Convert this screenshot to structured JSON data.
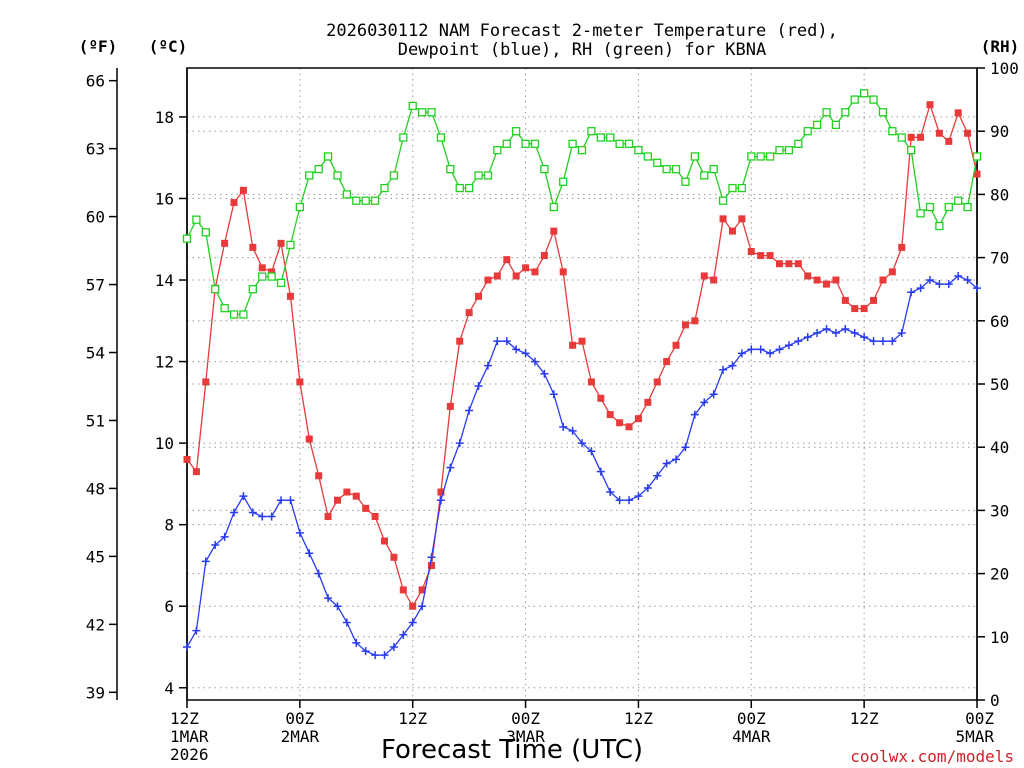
{
  "chart_data": {
    "type": "line",
    "title": [
      "2026030112 NAM Forecast 2-meter Temperature (red),",
      "Dewpoint (blue), RH (green) for KBNA"
    ],
    "xlabel": "Forecast Time (UTC)",
    "credit": "coolwx.com/models",
    "units": {
      "fahrenheit": "(ºF)",
      "celsius": "(ºC)",
      "rh": "(RH)"
    },
    "x_hours": [
      0,
      1,
      2,
      3,
      4,
      5,
      6,
      7,
      8,
      9,
      10,
      11,
      12,
      13,
      14,
      15,
      16,
      17,
      18,
      19,
      20,
      21,
      22,
      23,
      24,
      25,
      26,
      27,
      28,
      29,
      30,
      31,
      32,
      33,
      34,
      35,
      36,
      37,
      38,
      39,
      40,
      41,
      42,
      43,
      44,
      45,
      46,
      47,
      48,
      49,
      50,
      51,
      52,
      53,
      54,
      55,
      56,
      57,
      58,
      59,
      60,
      61,
      62,
      63,
      64,
      65,
      66,
      67,
      68,
      69,
      70,
      71,
      72,
      73,
      74,
      75,
      76,
      77,
      78,
      79,
      80,
      81,
      82,
      83,
      84
    ],
    "x_ticks": [
      {
        "hour": 0,
        "lines": [
          "12Z",
          "1MAR",
          "2026"
        ]
      },
      {
        "hour": 12,
        "lines": [
          "00Z",
          "2MAR"
        ]
      },
      {
        "hour": 24,
        "lines": [
          "12Z"
        ]
      },
      {
        "hour": 36,
        "lines": [
          "00Z",
          "3MAR"
        ]
      },
      {
        "hour": 48,
        "lines": [
          "12Z"
        ]
      },
      {
        "hour": 60,
        "lines": [
          "00Z",
          "4MAR"
        ]
      },
      {
        "hour": 72,
        "lines": [
          "12Z"
        ]
      },
      {
        "hour": 84,
        "lines": [
          "00Z",
          "5MAR"
        ]
      }
    ],
    "ylim_c": [
      3.7,
      19.2
    ],
    "yticks_c": [
      "4",
      "6",
      "8",
      "10",
      "12",
      "14",
      "16",
      "18"
    ],
    "yticks_f": [
      "39",
      "42",
      "45",
      "48",
      "51",
      "54",
      "57",
      "60",
      "63",
      "66"
    ],
    "ylim_rh": [
      0,
      100
    ],
    "yticks_rh": [
      "0",
      "10",
      "20",
      "30",
      "40",
      "50",
      "60",
      "70",
      "80",
      "90",
      "100"
    ],
    "grid": true,
    "series": [
      {
        "name": "Temperature",
        "axis": "c",
        "color": "#e83a3a",
        "marker": "filled-square",
        "values": [
          9.6,
          9.3,
          11.5,
          13.8,
          14.9,
          15.9,
          16.2,
          14.8,
          14.3,
          14.2,
          14.9,
          13.6,
          11.5,
          10.1,
          9.2,
          8.2,
          8.6,
          8.8,
          8.7,
          8.4,
          8.2,
          7.6,
          7.2,
          6.4,
          6.0,
          6.4,
          7.0,
          8.8,
          10.9,
          12.5,
          13.2,
          13.6,
          14.0,
          14.1,
          14.5,
          14.1,
          14.3,
          14.2,
          14.6,
          15.2,
          14.2,
          12.4,
          12.5,
          11.5,
          11.1,
          10.7,
          10.5,
          10.4,
          10.6,
          11.0,
          11.5,
          12.0,
          12.4,
          12.9,
          13.0,
          14.1,
          14.0,
          15.5,
          15.2,
          15.5,
          14.7,
          14.6,
          14.6,
          14.4,
          14.4,
          14.4,
          14.1,
          14.0,
          13.9,
          14.0,
          13.5,
          13.3,
          13.3,
          13.5,
          14.0,
          14.2,
          14.8,
          17.5,
          17.5,
          18.3,
          17.6,
          17.4,
          18.1,
          17.6,
          16.6
        ]
      },
      {
        "name": "Dewpoint",
        "axis": "c",
        "color": "#2a3cf0",
        "marker": "plus",
        "values": [
          5.0,
          5.4,
          7.1,
          7.5,
          7.7,
          8.3,
          8.7,
          8.3,
          8.2,
          8.2,
          8.6,
          8.6,
          7.8,
          7.3,
          6.8,
          6.2,
          6.0,
          5.6,
          5.1,
          4.9,
          4.8,
          4.8,
          5.0,
          5.3,
          5.6,
          6.0,
          7.2,
          8.6,
          9.4,
          10.0,
          10.8,
          11.4,
          11.9,
          12.5,
          12.5,
          12.3,
          12.2,
          12.0,
          11.7,
          11.2,
          10.4,
          10.3,
          10.0,
          9.8,
          9.3,
          8.8,
          8.6,
          8.6,
          8.7,
          8.9,
          9.2,
          9.5,
          9.6,
          9.9,
          10.7,
          11.0,
          11.2,
          11.8,
          11.9,
          12.2,
          12.3,
          12.3,
          12.2,
          12.3,
          12.4,
          12.5,
          12.6,
          12.7,
          12.8,
          12.7,
          12.8,
          12.7,
          12.6,
          12.5,
          12.5,
          12.5,
          12.7,
          13.7,
          13.8,
          14.0,
          13.9,
          13.9,
          14.1,
          14.0,
          13.8
        ]
      },
      {
        "name": "RH",
        "axis": "rh",
        "color": "#22d022",
        "marker": "open-square",
        "values": [
          73,
          76,
          74,
          65,
          62,
          61,
          61,
          65,
          67,
          67,
          66,
          72,
          78,
          83,
          84,
          86,
          83,
          80,
          79,
          79,
          79,
          81,
          83,
          89,
          94,
          93,
          93,
          89,
          84,
          81,
          81,
          83,
          83,
          87,
          88,
          90,
          88,
          88,
          84,
          78,
          82,
          88,
          87,
          90,
          89,
          89,
          88,
          88,
          87,
          86,
          85,
          84,
          84,
          82,
          86,
          83,
          84,
          79,
          81,
          81,
          86,
          86,
          86,
          87,
          87,
          88,
          90,
          91,
          93,
          91,
          93,
          95,
          96,
          95,
          93,
          90,
          89,
          87,
          77,
          78,
          75,
          78,
          79,
          78,
          86
        ]
      }
    ]
  }
}
